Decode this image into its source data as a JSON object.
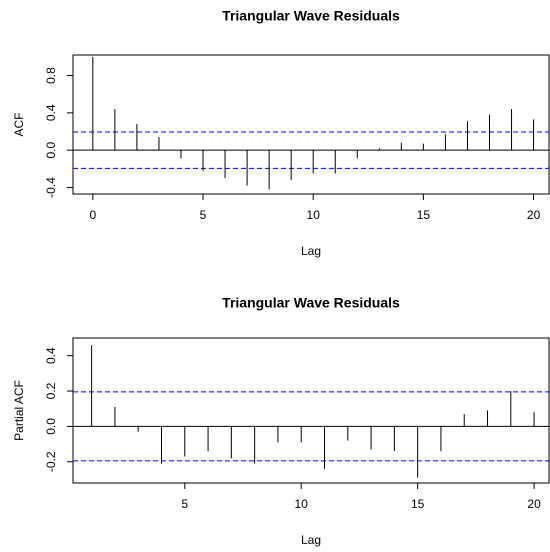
{
  "chart_data": [
    {
      "type": "acf",
      "title": "Triangular Wave Residuals",
      "xlabel": "Lag",
      "ylabel": "ACF",
      "x": [
        0,
        1,
        2,
        3,
        4,
        5,
        6,
        7,
        8,
        9,
        10,
        11,
        12,
        13,
        14,
        15,
        16,
        17,
        18,
        19,
        20
      ],
      "values": [
        1.0,
        0.44,
        0.28,
        0.14,
        -0.09,
        -0.22,
        -0.3,
        -0.38,
        -0.42,
        -0.32,
        -0.25,
        -0.25,
        -0.09,
        0.02,
        0.08,
        0.07,
        0.17,
        0.31,
        0.38,
        0.44,
        0.33
      ],
      "color": "#000000",
      "xlim": [
        -0.9,
        20.7
      ],
      "ylim": [
        -0.47,
        1.02
      ],
      "xticks": [
        0,
        5,
        10,
        15,
        20
      ],
      "yticks": [
        -0.4,
        {
          "value": 0,
          "label": "0.0"
        },
        0.4,
        0.8
      ],
      "hlines": [
        0.195,
        -0.195
      ],
      "hline_color": "#0000ff"
    },
    {
      "type": "acf",
      "title": "Triangular Wave Residuals",
      "xlabel": "Lag",
      "ylabel": "Partial ACF",
      "x": [
        1,
        2,
        3,
        4,
        5,
        6,
        7,
        8,
        9,
        10,
        11,
        12,
        13,
        14,
        15,
        16,
        17,
        18,
        19,
        20
      ],
      "values": [
        0.46,
        0.11,
        -0.03,
        -0.21,
        -0.17,
        -0.14,
        -0.18,
        -0.21,
        -0.09,
        -0.09,
        -0.24,
        -0.08,
        -0.13,
        -0.14,
        -0.29,
        -0.14,
        0.07,
        0.09,
        0.2,
        0.08
      ],
      "color": "#000000",
      "xlim": [
        0.2,
        20.64
      ],
      "ylim": [
        -0.32,
        0.5
      ],
      "xticks": [
        5,
        10,
        15,
        20
      ],
      "yticks": [
        -0.2,
        {
          "value": 0,
          "label": "0.0"
        },
        0.2,
        0.4
      ],
      "hlines": [
        0.195,
        -0.195
      ],
      "hline_color": "#0000ff"
    }
  ]
}
